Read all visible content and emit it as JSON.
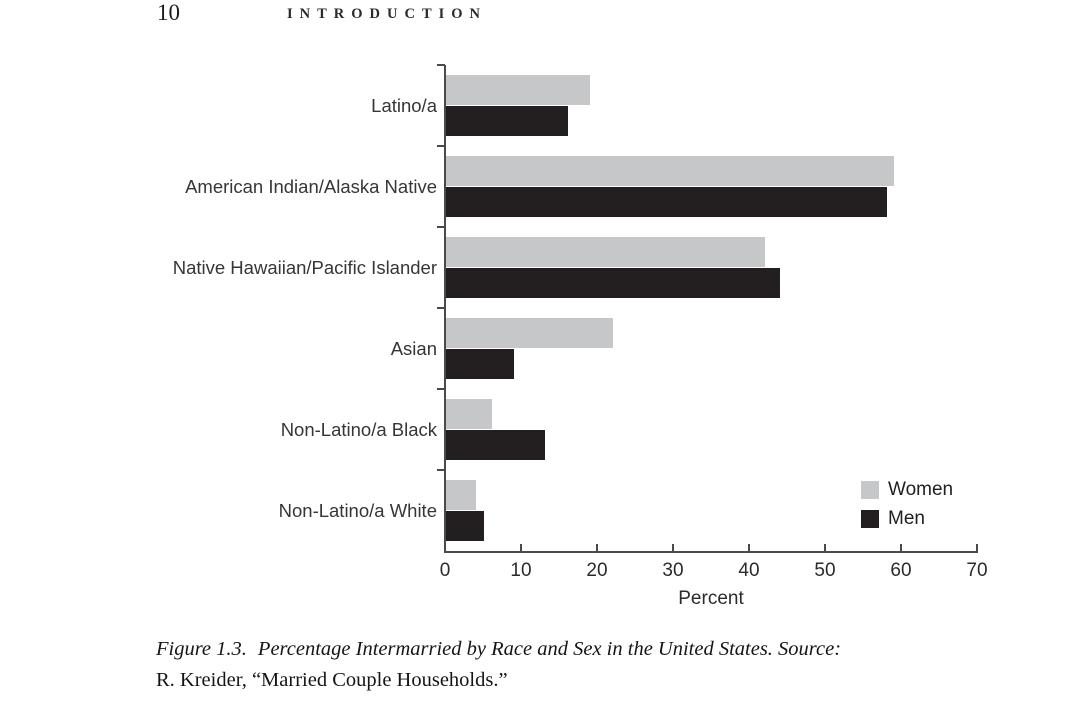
{
  "page_header": {
    "page_number": "10",
    "running_head": "INTRODUCTION"
  },
  "chart_data": {
    "type": "bar",
    "orientation": "horizontal",
    "categories": [
      "Latino/a",
      "American Indian/Alaska Native",
      "Native Hawaiian/Pacific Islander",
      "Asian",
      "Non-Latino/a Black",
      "Non-Latino/a White"
    ],
    "series": [
      {
        "name": "Women",
        "color": "#c6c7c9",
        "values": [
          19,
          59,
          42,
          22,
          6,
          4
        ]
      },
      {
        "name": "Men",
        "color": "#231f20",
        "values": [
          16,
          58,
          44,
          9,
          13,
          5
        ]
      }
    ],
    "xlabel": "Percent",
    "xlim": [
      0,
      70
    ],
    "xticks": [
      0,
      10,
      20,
      30,
      40,
      50,
      60,
      70
    ],
    "legend_position": "bottom-right",
    "grid": false,
    "axis_color": "#4a4a4a"
  },
  "caption": {
    "figure_label": "Figure 1.3.",
    "title": "Percentage Intermarried by Race and Sex in the United States. Source:",
    "source_line": "R. Kreider, “Married Couple Households.”"
  }
}
